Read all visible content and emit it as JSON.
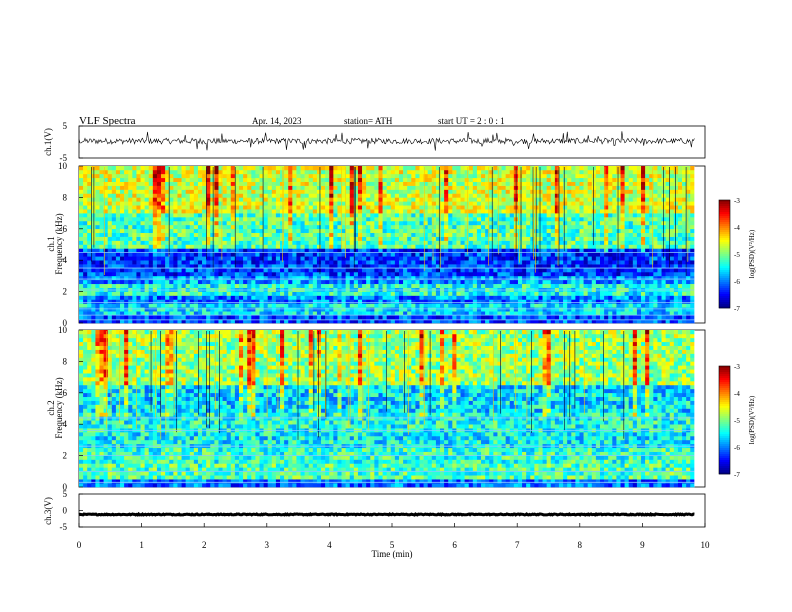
{
  "header": {
    "title": "VLF Spectra",
    "date": "Apr. 14, 2023",
    "station": "station= ATH",
    "start_ut": "start  UT  =   2 : 0  : 1"
  },
  "chart_data": [
    {
      "type": "line",
      "panel": "ch1-waveform",
      "ylabel": "ch.1(V)",
      "ylim": [
        -5,
        5
      ],
      "yticks": [
        "5",
        "-5"
      ],
      "xlim": [
        0,
        10
      ],
      "duration_min": 9.83,
      "baseline_v": 0.3,
      "noise_amplitude_v": 0.9,
      "spike_count": 30
    },
    {
      "type": "heatmap",
      "panel": "ch1-spectrogram",
      "ylabel": "ch.1\nFrequency (kHz)",
      "ylim": [
        0,
        10
      ],
      "yticks": [
        "0",
        "2",
        "4",
        "6",
        "8",
        "10"
      ],
      "xlim": [
        0,
        10
      ],
      "duration_min": 9.83,
      "bands": [
        {
          "f0": 0.0,
          "f1": 0.6,
          "level": -6.2
        },
        {
          "f0": 0.6,
          "f1": 1.2,
          "level": -5.6
        },
        {
          "f0": 1.2,
          "f1": 1.8,
          "level": -6.0
        },
        {
          "f0": 1.8,
          "f1": 2.4,
          "level": -5.4
        },
        {
          "f0": 2.4,
          "f1": 3.0,
          "level": -5.9
        },
        {
          "f0": 3.0,
          "f1": 4.8,
          "level": -6.3
        },
        {
          "f0": 4.8,
          "f1": 7.0,
          "level": -5.2
        },
        {
          "f0": 7.0,
          "f1": 10.0,
          "level": -4.7
        }
      ],
      "tones_khz": [
        0.2,
        0.5,
        0.9,
        1.3,
        2.1,
        2.8,
        3.5,
        4.5
      ],
      "colorbar": {
        "label": "log(PSD)(V²/Hz)",
        "min": -7,
        "max": -3,
        "ticks": [
          "-3",
          "-4",
          "-5",
          "-6",
          "-7"
        ]
      }
    },
    {
      "type": "heatmap",
      "panel": "ch2-spectrogram",
      "ylabel": "ch.2\nFrequency (kHz)",
      "ylim": [
        0,
        10
      ],
      "yticks": [
        "0",
        "2",
        "4",
        "6",
        "8",
        "10"
      ],
      "xlim": [
        0,
        10
      ],
      "duration_min": 9.83,
      "bands": [
        {
          "f0": 0.0,
          "f1": 0.6,
          "level": -6.1
        },
        {
          "f0": 0.6,
          "f1": 1.4,
          "level": -5.2
        },
        {
          "f0": 1.4,
          "f1": 2.4,
          "level": -5.3
        },
        {
          "f0": 2.4,
          "f1": 3.4,
          "level": -5.5
        },
        {
          "f0": 3.4,
          "f1": 4.8,
          "level": -5.4
        },
        {
          "f0": 4.8,
          "f1": 6.5,
          "level": -5.6
        },
        {
          "f0": 6.5,
          "f1": 10.0,
          "level": -4.9
        }
      ],
      "tones_khz": [
        0.3,
        1.0,
        2.0,
        2.6,
        3.6,
        4.4
      ],
      "colorbar": {
        "label": "log(PSD)(V²/Hz)",
        "min": -7,
        "max": -3,
        "ticks": [
          "-3",
          "-4",
          "-5",
          "-6",
          "-7"
        ]
      }
    },
    {
      "type": "line",
      "panel": "ch3-waveform",
      "ylabel": "ch.3(V)",
      "ylim": [
        -5,
        5
      ],
      "yticks": [
        "5",
        "0",
        "-5"
      ],
      "xlim": [
        0,
        10
      ],
      "xlabel": "Time  (min)",
      "xticks": [
        "0",
        "1",
        "2",
        "3",
        "4",
        "5",
        "6",
        "7",
        "8",
        "9",
        "10"
      ],
      "duration_min": 9.83,
      "baseline_v": -1.2,
      "noise_amplitude_v": 0.15
    }
  ]
}
